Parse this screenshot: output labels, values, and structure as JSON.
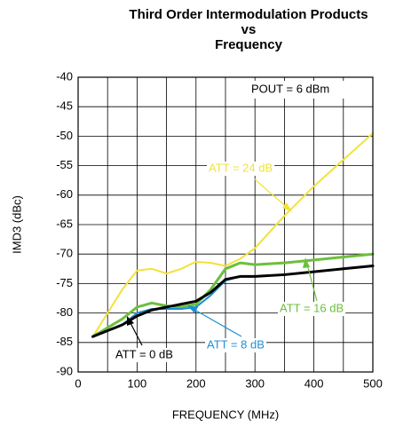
{
  "chart_data": {
    "type": "line",
    "title": [
      "Third Order Intermodulation Products",
      "vs",
      "Frequency"
    ],
    "xlabel": "FREQUENCY (MHz)",
    "ylabel": "IMD3 (dBc)",
    "x": [
      25,
      50,
      75,
      100,
      125,
      150,
      175,
      200,
      225,
      250,
      275,
      300,
      350,
      400,
      450,
      500
    ],
    "series": [
      {
        "name": "ATT = 24 dB",
        "color": "#f2e23a",
        "values": [
          -84,
          -80,
          -76,
          -72.8,
          -72.5,
          -73.3,
          -72.5,
          -71.3,
          -71.5,
          -72,
          -70.8,
          -69,
          -63.5,
          -58.5,
          -54,
          -49.5
        ]
      },
      {
        "name": "ATT = 16 dB",
        "color": "#6cbf3c",
        "values": [
          -84,
          -82.5,
          -81,
          -79,
          -78.3,
          -78.8,
          -79,
          -78.5,
          -76,
          -72.5,
          -71.5,
          -71.8,
          -71.5,
          -71,
          -70.5,
          -70
        ]
      },
      {
        "name": "ATT = 8 dB",
        "color": "#1f8fd0",
        "values": [
          -84,
          -83,
          -82,
          -80,
          -79.3,
          -79.3,
          -79.3,
          -79,
          -77,
          -74.5,
          -73.8,
          -73.8,
          -73.5,
          -73,
          -72.5,
          -72
        ]
      },
      {
        "name": "ATT = 0 dB",
        "color": "#000000",
        "values": [
          -84,
          -83,
          -82,
          -80.5,
          -79.5,
          -79,
          -78.5,
          -78,
          -76.5,
          -74.3,
          -73.8,
          -73.8,
          -73.5,
          -73,
          -72.5,
          -72
        ]
      }
    ],
    "annotations": [
      "POUT = 6 dBm"
    ],
    "xlim": [
      0,
      500
    ],
    "xticks": [
      0,
      100,
      200,
      300,
      400,
      500
    ],
    "x_minor_ticks": [
      50,
      150,
      250,
      350,
      450
    ],
    "ylim": [
      -90,
      -40
    ],
    "yticks": [
      -90,
      -85,
      -80,
      -75,
      -70,
      -65,
      -60,
      -55,
      -50,
      -45,
      -40
    ],
    "grid": true
  }
}
